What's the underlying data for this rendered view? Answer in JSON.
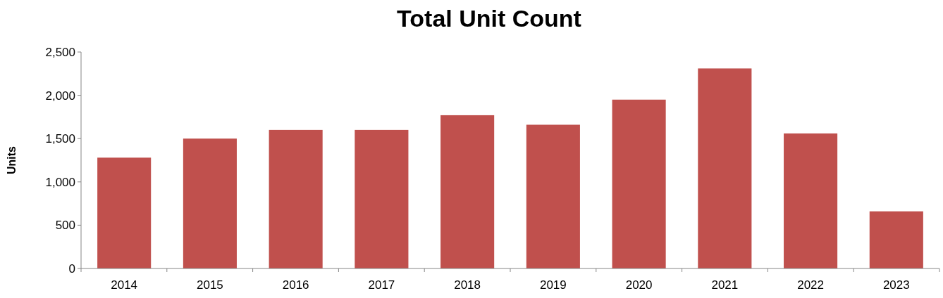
{
  "chart_data": {
    "type": "bar",
    "title": "Total Unit Count",
    "ylabel": "Units",
    "categories": [
      "2014",
      "2015",
      "2016",
      "2017",
      "2018",
      "2019",
      "2020",
      "2021",
      "2022",
      "2023"
    ],
    "values": [
      1280,
      1500,
      1600,
      1600,
      1770,
      1660,
      1950,
      2310,
      1560,
      660
    ],
    "color": "#c0504d",
    "ylim": [
      0,
      2500
    ],
    "yticks": [
      0,
      {
        "value": 500,
        "label": "500"
      },
      {
        "value": 1000,
        "label": "1,000"
      },
      {
        "value": 1500,
        "label": "1,500"
      },
      {
        "value": 2000,
        "label": "2,000"
      },
      {
        "value": 2500,
        "label": "2,500"
      }
    ],
    "grid": false
  }
}
